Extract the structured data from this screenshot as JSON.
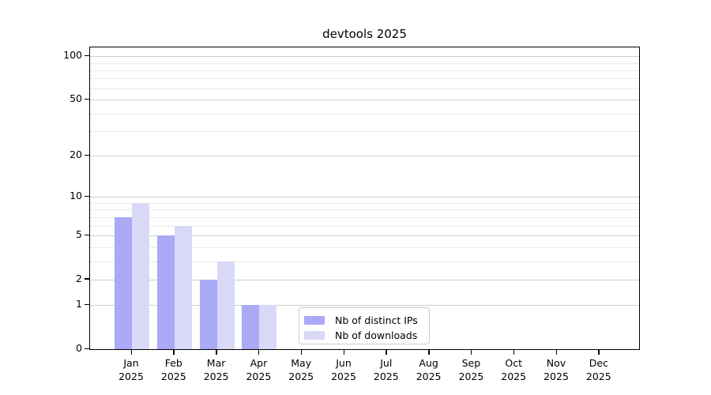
{
  "chart_data": {
    "type": "bar",
    "title": "devtools 2025",
    "categories": [
      "Jan",
      "Feb",
      "Mar",
      "Apr",
      "May",
      "Jun",
      "Jul",
      "Aug",
      "Sep",
      "Oct",
      "Nov",
      "Dec"
    ],
    "category_year": "2025",
    "series": [
      {
        "name": "Nb of distinct IPs",
        "color": "#a9a9f6",
        "values": [
          7,
          5,
          2,
          1,
          0,
          0,
          0,
          0,
          0,
          0,
          0,
          0
        ]
      },
      {
        "name": "Nb of downloads",
        "color": "#d9d9f7",
        "values": [
          9,
          6,
          3,
          1,
          0,
          0,
          0,
          0,
          0,
          0,
          0,
          0
        ]
      }
    ],
    "yscale": "log1p",
    "yticks": [
      0,
      1,
      2,
      5,
      10,
      20,
      50,
      100
    ],
    "yticks_minor": [
      3,
      4,
      6,
      7,
      8,
      9,
      30,
      40,
      60,
      70,
      80,
      90
    ],
    "ylim": [
      0,
      115
    ],
    "grid": "horizontal",
    "legend_position": "inside-lower-center"
  },
  "colors": {
    "background": "#ffffff",
    "axis": "#000000",
    "grid_major": "#cccccc",
    "grid_minor": "#eaeaea",
    "text": "#000000",
    "legend_border": "#cccccc"
  }
}
